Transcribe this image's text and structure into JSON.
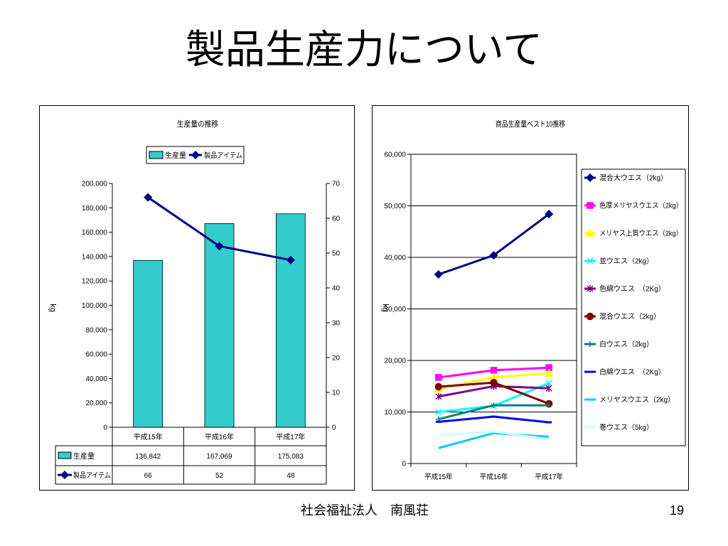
{
  "slide": {
    "title": "製品生産力について",
    "footer": "社会福祉法人　南風荘",
    "page_number": "19"
  },
  "chart_data": [
    {
      "type": "bar",
      "title": "生産量の推移",
      "ylabel": "kg",
      "categories": [
        "平成15年",
        "平成16年",
        "平成17年"
      ],
      "ylim": [
        0,
        200000
      ],
      "y_tick_labels": [
        "0",
        "20,000",
        "40,000",
        "60,000",
        "80,000",
        "100,000",
        "120,000",
        "140,000",
        "160,000",
        "180,000",
        "200,000"
      ],
      "y2lim": [
        0,
        70
      ],
      "y2_tick_labels": [
        "0",
        "10",
        "20",
        "30",
        "40",
        "50",
        "60",
        "70"
      ],
      "grid": false,
      "legend_position": "top",
      "series": [
        {
          "name": "生産量",
          "kind": "bar",
          "axis": "left",
          "color": "#33CCCC",
          "values": [
            136842,
            167069,
            175083
          ]
        },
        {
          "name": "製品アイテム",
          "kind": "line",
          "axis": "right",
          "color": "#000080",
          "marker": "diamond",
          "values": [
            66,
            52,
            48
          ]
        }
      ],
      "data_table": [
        [
          "136,842",
          "167,069",
          "175,083"
        ],
        [
          "66",
          "52",
          "48"
        ]
      ]
    },
    {
      "type": "line",
      "title": "商品生産量ベスト10推移",
      "ylabel": "kg",
      "categories": [
        "平成15年",
        "平成16年",
        "平成17年"
      ],
      "ylim": [
        0,
        60000
      ],
      "y_tick_labels": [
        "0",
        "10,000",
        "20,000",
        "30,000",
        "40,000",
        "50,000",
        "60,000"
      ],
      "grid": true,
      "legend_position": "right",
      "series": [
        {
          "name": "混合大ウエス（2kg）",
          "color": "#000080",
          "marker": "diamond",
          "values": [
            36700,
            40400,
            48400
          ]
        },
        {
          "name": "色厚メリヤスウエス（2kg）",
          "color": "#FF00FF",
          "marker": "square",
          "values": [
            16700,
            18100,
            18600
          ]
        },
        {
          "name": "メリヤス上質ウエス（2kg）",
          "color": "#FFFF00",
          "marker": "triangle",
          "values": [
            14500,
            16700,
            17500
          ]
        },
        {
          "name": "並ウエス（2kg）",
          "color": "#00FFFF",
          "marker": "x",
          "values": [
            10000,
            11200,
            15600
          ]
        },
        {
          "name": "色綿ウエス　（2Kg）",
          "color": "#800080",
          "marker": "asterisk",
          "values": [
            13000,
            15000,
            14600
          ]
        },
        {
          "name": "混合ウエス（2kg）",
          "color": "#800000",
          "marker": "circle",
          "values": [
            14900,
            15700,
            11600
          ]
        },
        {
          "name": "白ウエス（2kg）",
          "color": "#008080",
          "marker": "plus",
          "values": [
            8600,
            11300,
            11300
          ]
        },
        {
          "name": "白綿ウエス　（2Kg）",
          "color": "#0000FF",
          "marker": "dash",
          "values": [
            8100,
            9100,
            8000
          ]
        },
        {
          "name": "メリヤスウエス（2kg）",
          "color": "#00CCFF",
          "marker": "none",
          "values": [
            3000,
            5900,
            5200
          ]
        },
        {
          "name": "巻ウエス（5kg）",
          "color": "#CCFFFF",
          "marker": "none",
          "values": [
            5500,
            6200,
            4700
          ]
        }
      ]
    }
  ]
}
